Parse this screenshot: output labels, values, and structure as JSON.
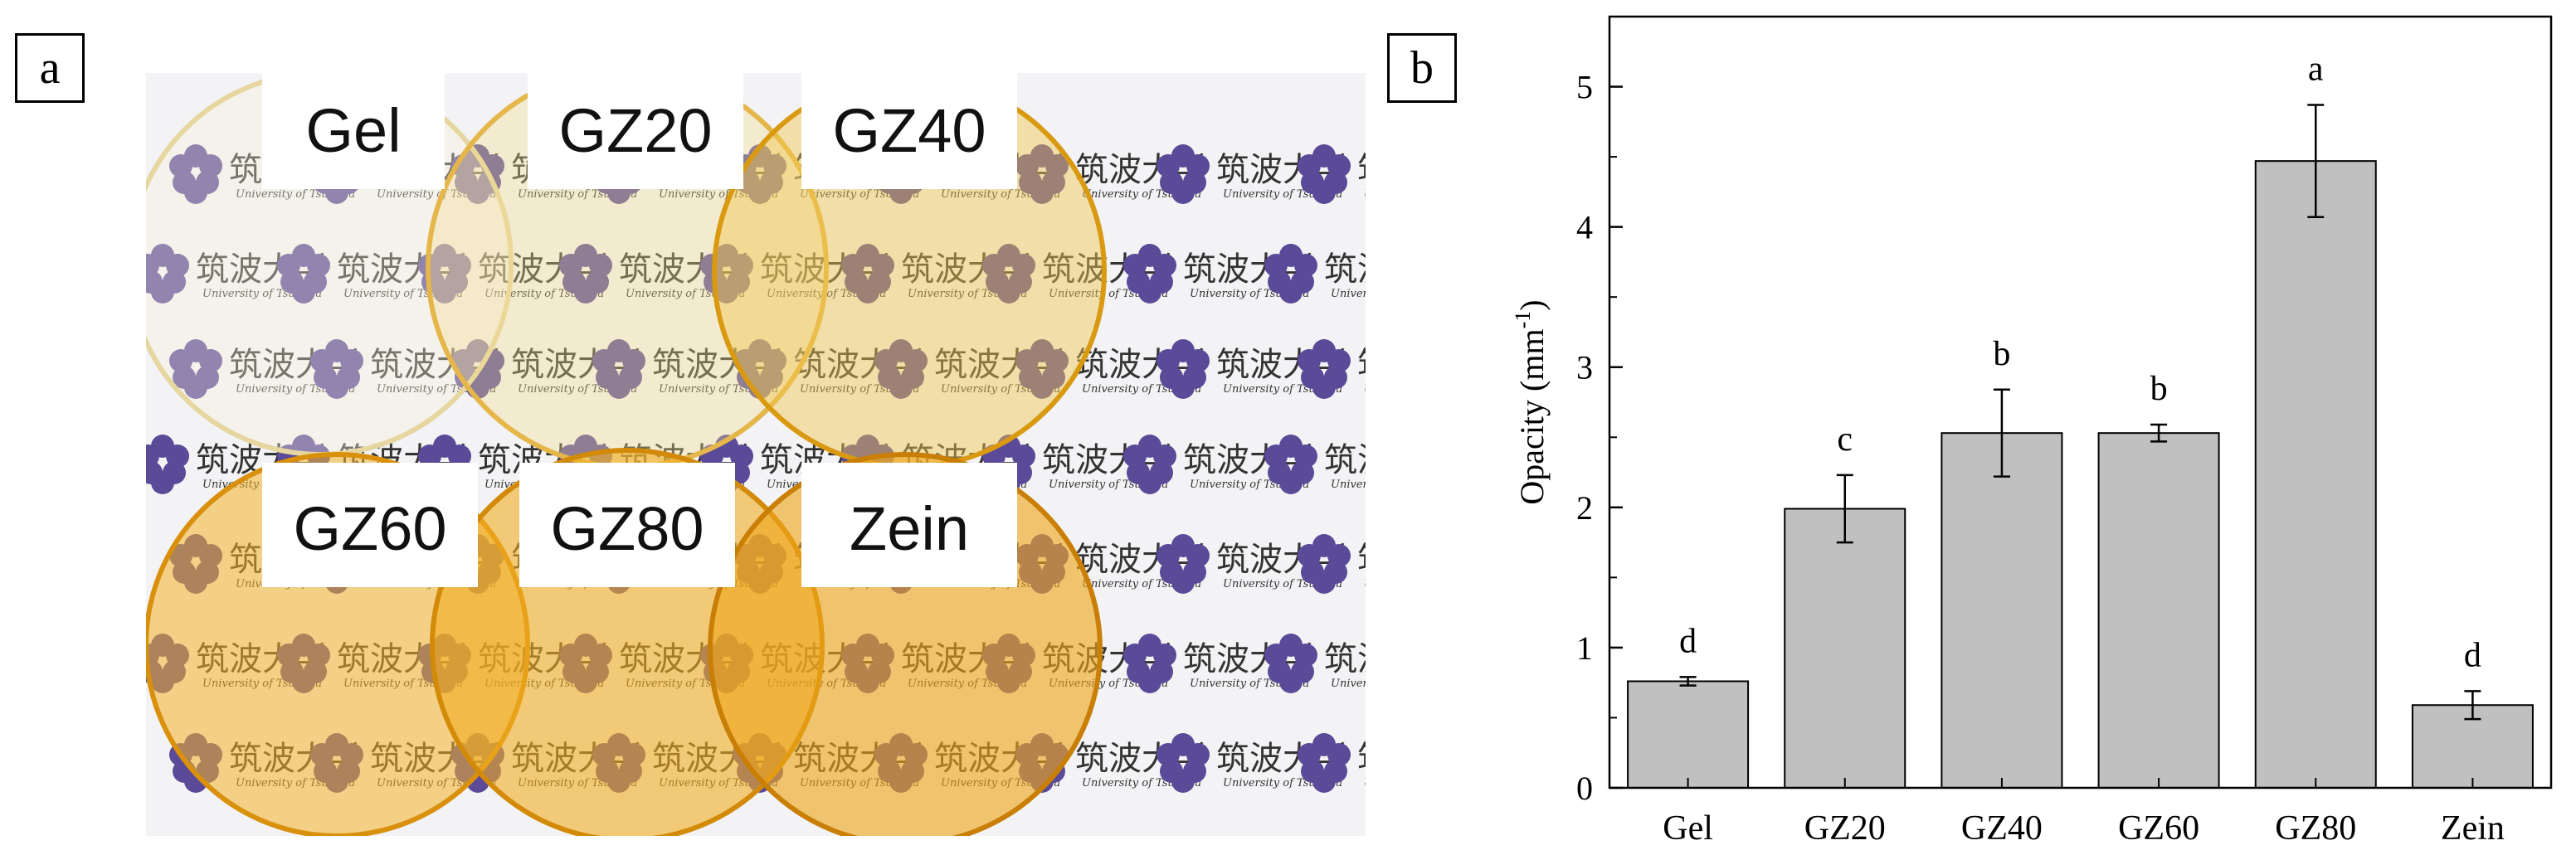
{
  "panels": {
    "a": "a",
    "b": "b"
  },
  "photo": {
    "logo_text": "筑波大学",
    "logo_subtext": "University of Tsukuba",
    "film_labels": [
      "Gel",
      "GZ20",
      "GZ40",
      "GZ60",
      "GZ80",
      "Zein"
    ],
    "colors": {
      "paper": "#f3f3f6",
      "logo": "#5a4a98",
      "film_tint": "#f2b429"
    }
  },
  "chart_data": {
    "type": "bar",
    "categories": [
      "Gel",
      "GZ20",
      "GZ40",
      "GZ60",
      "GZ80",
      "Zein"
    ],
    "values": [
      0.76,
      1.99,
      2.53,
      2.53,
      4.47,
      0.59
    ],
    "errors": [
      0.03,
      0.24,
      0.31,
      0.06,
      0.4,
      0.1
    ],
    "significance": [
      "d",
      "c",
      "b",
      "b",
      "a",
      "d"
    ],
    "ylabel": "Opacity (mm",
    "ylabel_sup": "-1",
    "ylabel_end": ")",
    "xlabel": "",
    "ylim": [
      0,
      5.5
    ],
    "yticks": [
      0,
      1,
      2,
      3,
      4,
      5
    ],
    "bar_color": "#c0c0c0"
  }
}
